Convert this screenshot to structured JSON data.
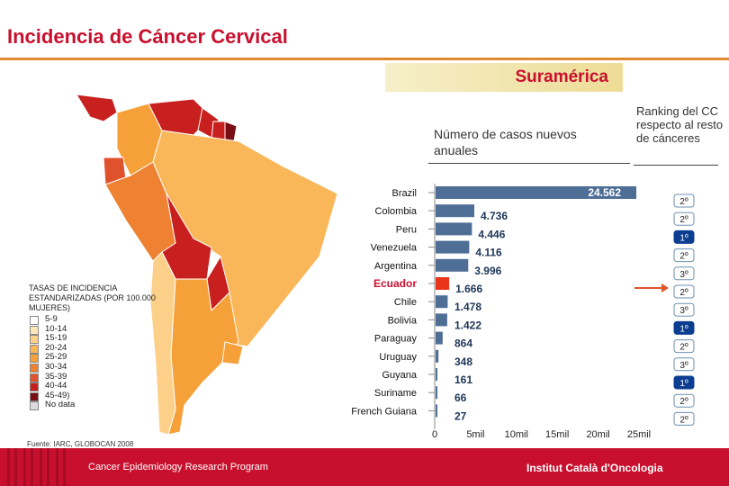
{
  "header": {
    "title": "Incidencia de Cáncer Cervical",
    "region": "Suramérica"
  },
  "chart_header": {
    "cases_title": "Número de casos nuevos anuales",
    "ranking_title": "Ranking del CC respecto al resto de cánceres"
  },
  "legend": {
    "title": "TASAS DE INCIDENCIA ESTANDARIZADAS (POR 100.000 MUJERES)",
    "items": [
      {
        "label": "5-9",
        "color": "#ffffff"
      },
      {
        "label": "10-14",
        "color": "#fde8b8"
      },
      {
        "label": "15-19",
        "color": "#fcd089"
      },
      {
        "label": "20-24",
        "color": "#f9b75a"
      },
      {
        "label": "25-29",
        "color": "#f6a03a"
      },
      {
        "label": "30-34",
        "color": "#ee8132"
      },
      {
        "label": "35-39",
        "color": "#e0522b"
      },
      {
        "label": "40-44",
        "color": "#c8201f"
      },
      {
        "label": "45-49)",
        "color": "#7a0e16"
      },
      {
        "label": "No data",
        "color": "#dcdcdc"
      }
    ]
  },
  "source": "Fuente: IARC, GLOBOCAN 2008",
  "footer": {
    "left": "Cancer Epidemiology  Research Program",
    "right": "Institut Català d'Oncologia"
  },
  "colors": {
    "accent": "#c8102e",
    "bar": "#4f6e96",
    "highlight": "#e8351c",
    "rank_first": "#0b3d91"
  },
  "map": {
    "regions": [
      {
        "name": "Colombia",
        "color": "#f6a03a"
      },
      {
        "name": "Venezuela",
        "color": "#c8201f"
      },
      {
        "name": "Guyana",
        "color": "#c8201f"
      },
      {
        "name": "Suriname",
        "color": "#c8201f"
      },
      {
        "name": "French Guiana",
        "color": "#7a0e16"
      },
      {
        "name": "Ecuador",
        "color": "#e0522b"
      },
      {
        "name": "Peru",
        "color": "#ee8132"
      },
      {
        "name": "Brazil",
        "color": "#f9b75a"
      },
      {
        "name": "Bolivia",
        "color": "#c8201f"
      },
      {
        "name": "Paraguay",
        "color": "#c8201f"
      },
      {
        "name": "Chile",
        "color": "#fcd089"
      },
      {
        "name": "Argentina",
        "color": "#f6a03a"
      },
      {
        "name": "Uruguay",
        "color": "#f6a03a"
      },
      {
        "name": "Central America",
        "color": "#c8201f"
      }
    ]
  },
  "chart_data": {
    "type": "bar",
    "orientation": "horizontal",
    "categories": [
      "Brazil",
      "Colombia",
      "Peru",
      "Venezuela",
      "Argentina",
      "Ecuador",
      "Chile",
      "Bolivia",
      "Paraguay",
      "Uruguay",
      "Guyana",
      "Suriname",
      "French Guiana"
    ],
    "values": [
      24562,
      4736,
      4446,
      4116,
      3996,
      1666,
      1478,
      1422,
      864,
      348,
      161,
      66,
      27
    ],
    "value_labels": [
      "24.562",
      "4.736",
      "4.446",
      "4.116",
      "3.996",
      "1.666",
      "1.478",
      "1.422",
      "864",
      "348",
      "161",
      "66",
      "27"
    ],
    "highlight": "Ecuador",
    "ranking": [
      "2º",
      "2º",
      "1º",
      "2º",
      "3º",
      "2º",
      "3º",
      "1º",
      "2º",
      "3º",
      "1º",
      "2º",
      "2º"
    ],
    "xlim": [
      0,
      25000
    ],
    "ticks": [
      0,
      5000,
      10000,
      15000,
      20000,
      25000
    ],
    "tick_labels": [
      "0",
      "5mil",
      "10mil",
      "15mil",
      "20mil",
      "25mil"
    ]
  }
}
